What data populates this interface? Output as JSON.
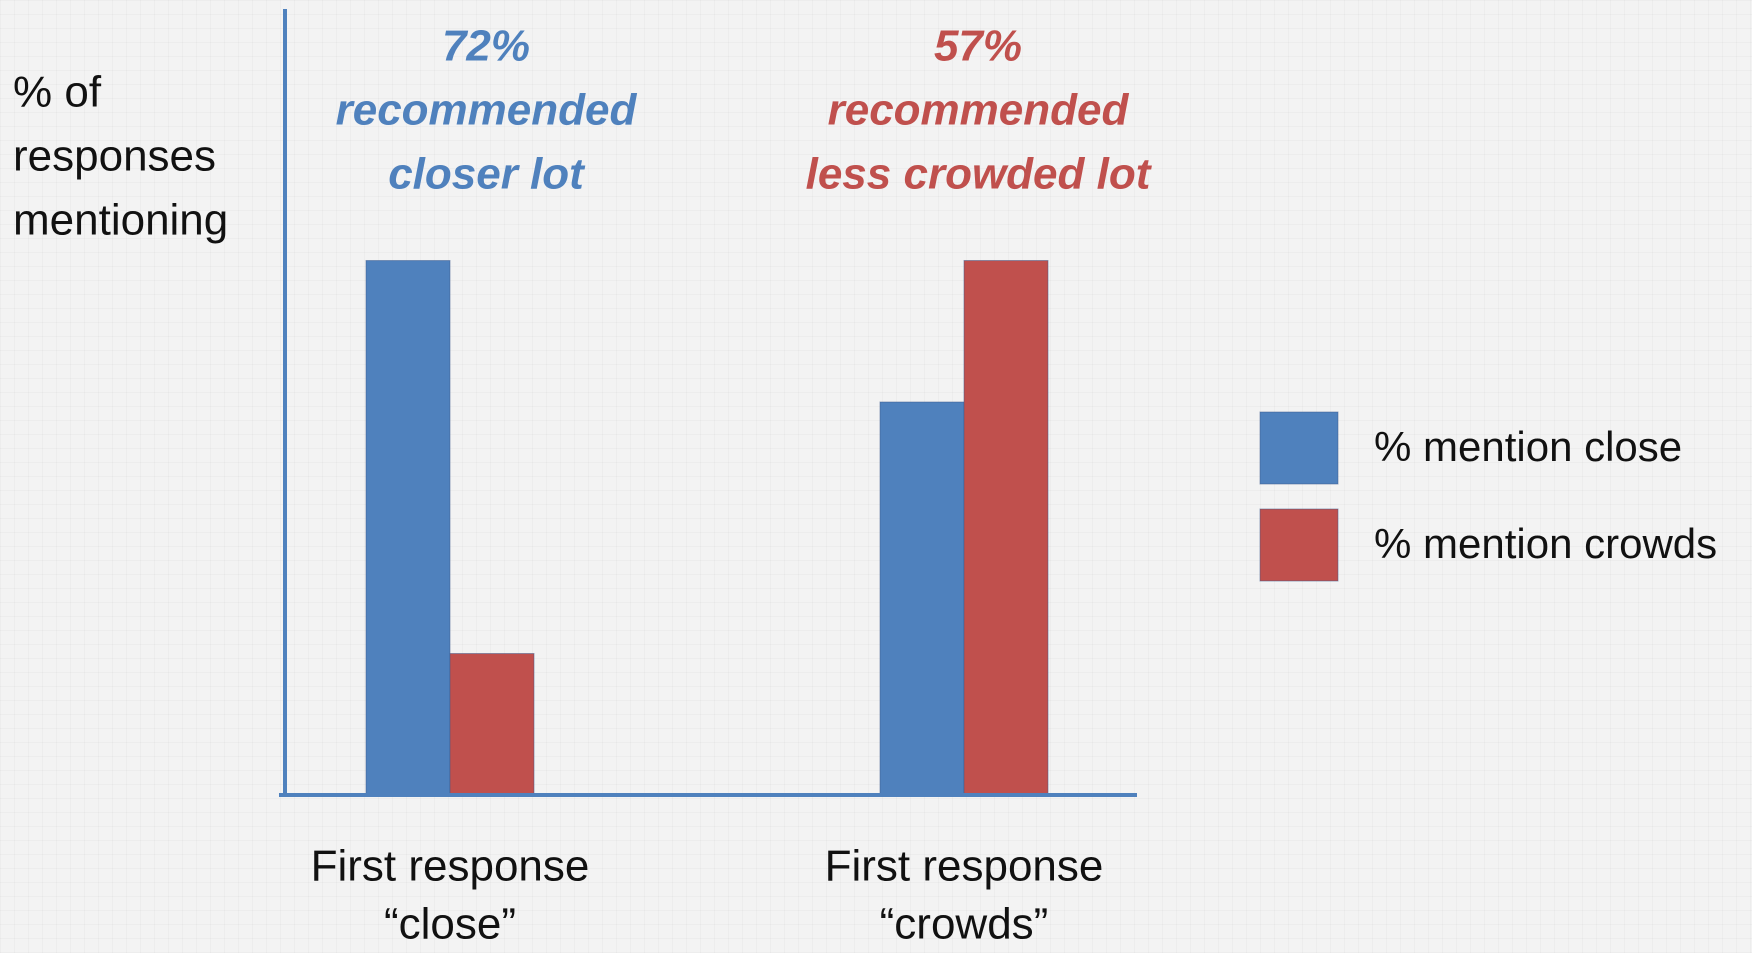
{
  "chart_data": {
    "type": "bar",
    "y_label": [
      "% of",
      "responses",
      "mentioning"
    ],
    "categories": [
      [
        "First response",
        "“close”"
      ],
      [
        "First response",
        "“crowds”"
      ]
    ],
    "series": [
      {
        "name": "% mention close",
        "color": "#4f81bd",
        "values": [
          68,
          50
        ]
      },
      {
        "name": "% mention crowds",
        "color": "#c0504d",
        "values": [
          18,
          68
        ]
      }
    ],
    "ylim": [
      0,
      100
    ],
    "annotations": [
      {
        "lines": [
          "72%",
          "recommended",
          "closer lot"
        ],
        "color": "#4f81bd"
      },
      {
        "lines": [
          "57%",
          "recommended",
          "less crowded lot"
        ],
        "color": "#c0504d"
      }
    ],
    "legend": "right"
  }
}
